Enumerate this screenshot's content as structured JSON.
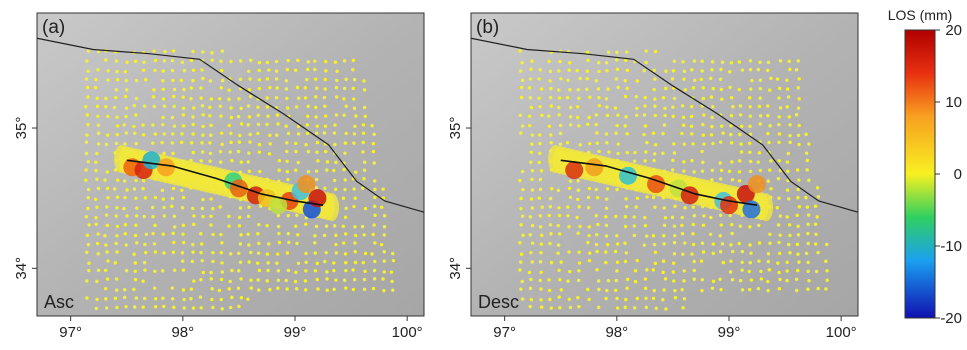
{
  "panels": [
    {
      "label": "(a)",
      "name": "Asc"
    },
    {
      "label": "(b)",
      "name": "Desc"
    }
  ],
  "x_axis": {
    "lim": [
      96.7,
      100.15
    ],
    "ticks": [
      {
        "value": 97,
        "label": "97°"
      },
      {
        "value": 98,
        "label": "98°"
      },
      {
        "value": 99,
        "label": "99°"
      },
      {
        "value": 100,
        "label": "100°"
      }
    ]
  },
  "y_axis": {
    "lim": [
      33.66,
      35.82
    ],
    "ticks": [
      {
        "value": 34,
        "label": "34°"
      },
      {
        "value": 35,
        "label": "35°"
      }
    ]
  },
  "colorbar": {
    "title": "LOS (mm)",
    "lim": [
      -20,
      20
    ],
    "ticks": [
      -20,
      -10,
      0,
      10,
      20
    ]
  }
}
